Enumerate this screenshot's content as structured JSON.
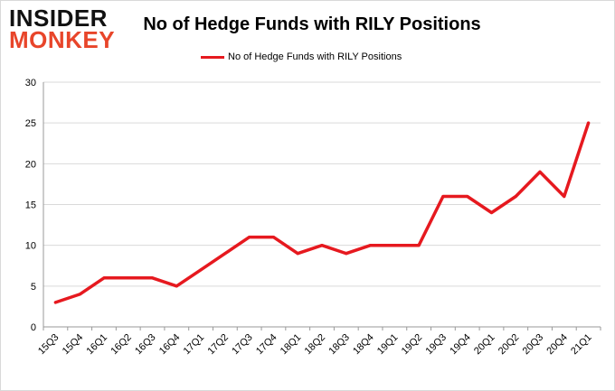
{
  "logo": {
    "top": "INSIDER",
    "bottom": "MONKEY"
  },
  "colors": {
    "line": "#e6191f",
    "grid": "#d9d9d9",
    "axis": "#999999",
    "logo_accent": "#e8452a"
  },
  "chart_data": {
    "type": "line",
    "title": "No of Hedge Funds with RILY Positions",
    "xlabel": "",
    "ylabel": "",
    "ylim": [
      0,
      30
    ],
    "yticks": [
      0,
      5,
      10,
      15,
      20,
      25,
      30
    ],
    "grid": true,
    "legend_position": "top",
    "categories": [
      "15Q3",
      "15Q4",
      "16Q1",
      "16Q2",
      "16Q3",
      "16Q4",
      "17Q1",
      "17Q2",
      "17Q3",
      "17Q4",
      "18Q1",
      "18Q2",
      "18Q3",
      "18Q4",
      "19Q1",
      "19Q2",
      "19Q3",
      "19Q4",
      "20Q1",
      "20Q2",
      "20Q3",
      "20Q4",
      "21Q1"
    ],
    "series": [
      {
        "name": "No of Hedge Funds with RILY Positions",
        "values": [
          3,
          4,
          6,
          6,
          6,
          5,
          7,
          9,
          11,
          11,
          9,
          10,
          9,
          10,
          10,
          10,
          16,
          16,
          14,
          16,
          19,
          16,
          25
        ]
      }
    ]
  }
}
